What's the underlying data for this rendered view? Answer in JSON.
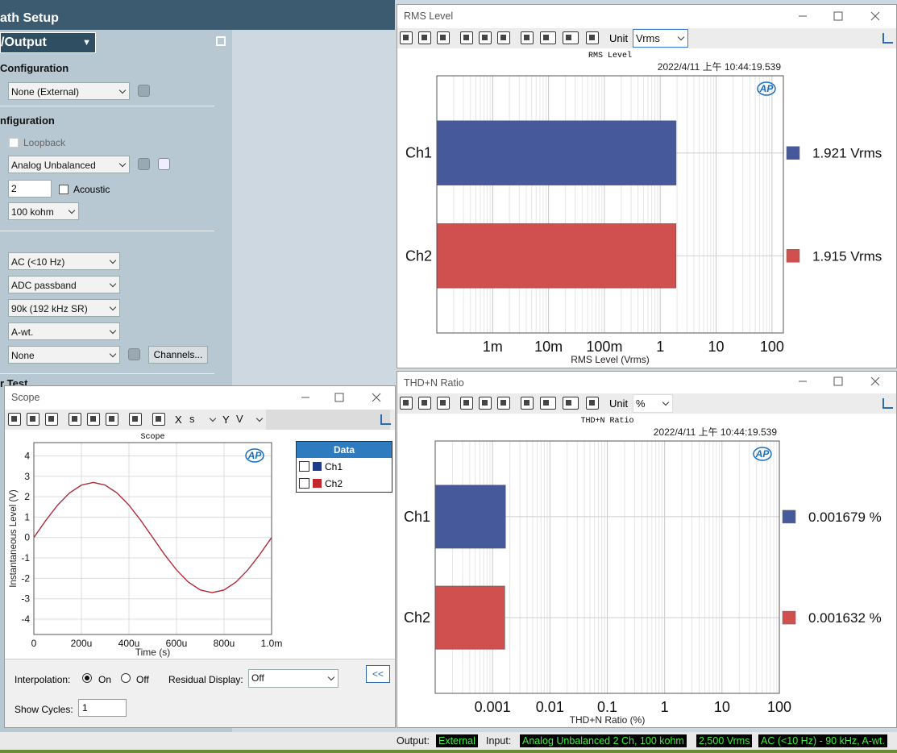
{
  "path_setup": {
    "title": "ath Setup",
    "section": "/Output",
    "generator_heading": "Configuration",
    "generator_select": "None (External)",
    "input_heading": "nfiguration",
    "loopback": "Loopback",
    "connector": "Analog Unbalanced",
    "channels": "2",
    "acoustic": "Acoustic",
    "impedance": "100 kohm",
    "coupling": "AC (<10 Hz)",
    "bandwidth": "ADC passband",
    "filter": "90k (192 kHz SR)",
    "weighting": "A-wt.",
    "channel_select": "None",
    "channels_button": "Channels...",
    "next_heading": "r Test"
  },
  "chart_data": [
    {
      "type": "hbar",
      "window_title": "RMS Level",
      "unit_label": "Unit",
      "unit": "Vrms",
      "title": "RMS Level",
      "timestamp": "2022/4/11 上午 10:44:19.539",
      "logo": "AP",
      "categories": [
        "Ch1",
        "Ch2"
      ],
      "values": [
        1.921,
        1.915
      ],
      "value_labels": [
        "1.921 Vrms",
        "1.915 Vrms"
      ],
      "colors": [
        "#46599a",
        "#d0504f"
      ],
      "xlabel": "RMS Level (Vrms)",
      "xscale": "log",
      "xlim": [
        0.0001,
        160
      ],
      "xticks": [
        {
          "value": 0.001,
          "label": "1m"
        },
        {
          "value": 0.01,
          "label": "10m"
        },
        {
          "value": 0.1,
          "label": "100m"
        },
        1,
        10,
        100
      ],
      "grid": true
    },
    {
      "type": "hbar",
      "window_title": "THD+N Ratio",
      "unit_label": "Unit",
      "unit": "%",
      "title": "THD+N Ratio",
      "timestamp": "2022/4/11 上午 10:44:19.539",
      "logo": "AP",
      "categories": [
        "Ch1",
        "Ch2"
      ],
      "values": [
        0.001679,
        0.001632
      ],
      "value_labels": [
        "0.001679 %",
        "0.001632 %"
      ],
      "colors": [
        "#46599a",
        "#d0504f"
      ],
      "xlabel": "THD+N Ratio (%)",
      "xscale": "log",
      "xlim": [
        0.0001,
        100
      ],
      "xticks": [
        0.001,
        0.01,
        0.1,
        1,
        10,
        100
      ],
      "grid": true
    },
    {
      "type": "line",
      "window_title": "Scope",
      "x_unit_label": "X",
      "x_unit": "s",
      "y_unit_label": "Y",
      "y_unit": "V",
      "title": "Scope",
      "logo": "AP",
      "legend_title": "Data",
      "x": [
        0,
        5e-05,
        0.0001,
        0.00015,
        0.0002,
        0.00025,
        0.0003,
        0.00035,
        0.0004,
        0.00045,
        0.0005,
        0.00055,
        0.0006,
        0.00065,
        0.0007,
        0.00075,
        0.0008,
        0.00085,
        0.0009,
        0.00095,
        0.001
      ],
      "series": [
        {
          "name": "Ch1",
          "color": "#1f3a8a",
          "values": [
            0,
            0.834,
            1.587,
            2.184,
            2.568,
            2.7,
            2.568,
            2.184,
            1.587,
            0.834,
            0,
            -0.834,
            -1.587,
            -2.184,
            -2.568,
            -2.7,
            -2.568,
            -2.184,
            -1.587,
            -0.834,
            0
          ]
        },
        {
          "name": "Ch2",
          "color": "#c0282d",
          "values": [
            0,
            0.834,
            1.587,
            2.184,
            2.568,
            2.7,
            2.568,
            2.184,
            1.587,
            0.834,
            0,
            -0.834,
            -1.587,
            -2.184,
            -2.568,
            -2.7,
            -2.568,
            -2.184,
            -1.587,
            -0.834,
            0
          ]
        }
      ],
      "xlabel": "Time (s)",
      "ylabel": "Instantaneous Level (V)",
      "xlim": [
        0,
        0.001
      ],
      "xticks": [
        0,
        {
          "value": 0.0002,
          "label": "200u"
        },
        {
          "value": 0.0004,
          "label": "400u"
        },
        {
          "value": 0.0006,
          "label": "600u"
        },
        {
          "value": 0.0008,
          "label": "800u"
        },
        {
          "value": 0.001,
          "label": "1.0m"
        }
      ],
      "ylim": [
        -4.75,
        4.65
      ],
      "yticks": [
        -4,
        -3,
        -2,
        -1,
        0,
        1,
        2,
        3,
        4
      ],
      "grid": true
    }
  ],
  "scope_controls": {
    "interpolation_label": "Interpolation:",
    "on": "On",
    "off": "Off",
    "residual_label": "Residual Display:",
    "residual": "Off",
    "cycles_label": "Show Cycles:",
    "cycles": "1",
    "collapse": "<<"
  },
  "status_bar": {
    "output_label": "Output:",
    "output": "External",
    "input_label": "Input:",
    "input": "Analog Unbalanced 2 Ch, 100 kohm",
    "level": "2,500 Vrms",
    "bandwidth": "AC (<10 Hz) - 90 kHz, A-wt."
  }
}
